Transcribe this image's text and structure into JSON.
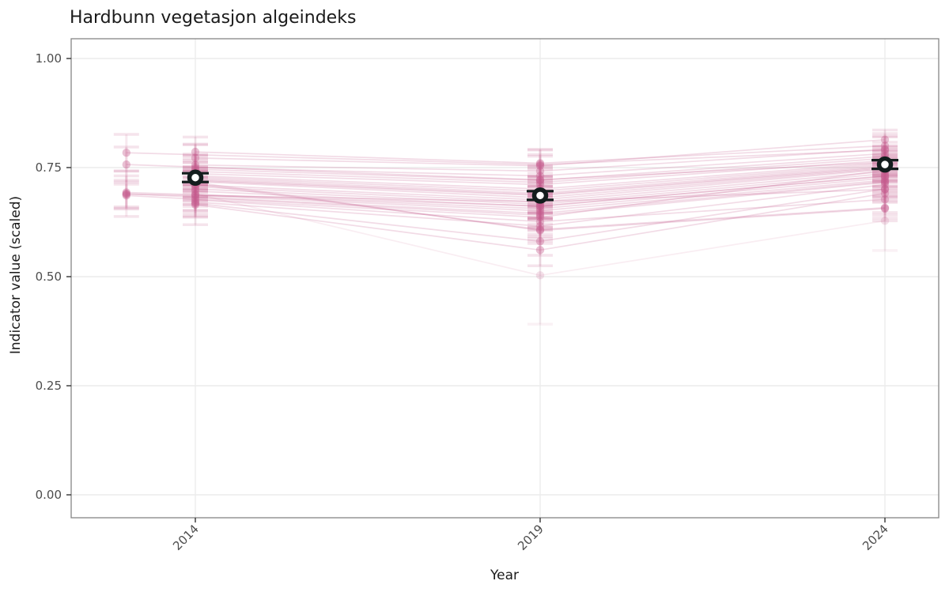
{
  "chart_data": {
    "type": "line",
    "title": "Hardbunn vegetasjon algeindeks",
    "xlabel": "Year",
    "ylabel": "Indicator value (scaled)",
    "x_ticks": [
      2014,
      2019,
      2024
    ],
    "x_tick_labels": [
      "2014",
      "2019",
      "2024"
    ],
    "y_ticks": [
      0,
      0.25,
      0.5,
      0.75,
      1
    ],
    "y_tick_labels": [
      "0.00",
      "0.25",
      "0.50",
      "0.75",
      "1.00"
    ],
    "xlim": [
      2012.2,
      2024.8
    ],
    "ylim": [
      -0.05,
      1.05
    ],
    "grid": true,
    "legend": "none",
    "description": "Per-station indicator values (pink lines with vertical error bars) measured first in 2013 or 2014, then in 2019 and 2024; black open circles with capped error bars show the yearly mean with confidence interval.",
    "means": [
      {
        "year": 2014,
        "value": 0.727,
        "ci": 0.01
      },
      {
        "year": 2019,
        "value": 0.686,
        "ci": 0.01
      },
      {
        "year": 2024,
        "value": 0.757,
        "ci": 0.01
      }
    ],
    "station_format": [
      "first_year",
      "first_value",
      "first_err",
      "value_2019",
      "err_2019",
      "value_2024",
      "err_2024",
      "alpha_scale_optional"
    ],
    "stations": [
      [
        2013,
        0.784,
        0.042,
        0.757,
        0.035,
        0.79,
        0.03
      ],
      [
        2013,
        0.757,
        0.04,
        0.722,
        0.03,
        0.762,
        0.028
      ],
      [
        2013,
        0.693,
        0.038,
        0.662,
        0.03,
        0.73,
        0.032
      ],
      [
        2013,
        0.69,
        0.052,
        0.645,
        0.04,
        0.718,
        0.04
      ],
      [
        2013,
        0.686,
        0.026,
        0.636,
        0.028,
        0.744,
        0.026
      ],
      [
        2013,
        0.689,
        0.032,
        0.672,
        0.026,
        0.7,
        0.03
      ],
      [
        2014,
        0.786,
        0.034,
        0.76,
        0.03,
        0.8,
        0.028
      ],
      [
        2014,
        0.772,
        0.03,
        0.754,
        0.026,
        0.814,
        0.022
      ],
      [
        2014,
        0.756,
        0.048,
        0.742,
        0.034,
        0.792,
        0.03
      ],
      [
        2014,
        0.75,
        0.02,
        0.731,
        0.024,
        0.782,
        0.026
      ],
      [
        2014,
        0.746,
        0.03,
        0.721,
        0.028,
        0.776,
        0.024
      ],
      [
        2014,
        0.741,
        0.04,
        0.716,
        0.03,
        0.771,
        0.028
      ],
      [
        2014,
        0.736,
        0.026,
        0.711,
        0.026,
        0.766,
        0.03
      ],
      [
        2014,
        0.731,
        0.03,
        0.701,
        0.028,
        0.761,
        0.026
      ],
      [
        2014,
        0.728,
        0.05,
        0.696,
        0.034,
        0.758,
        0.028
      ],
      [
        2014,
        0.725,
        0.022,
        0.691,
        0.024,
        0.755,
        0.024
      ],
      [
        2014,
        0.722,
        0.03,
        0.688,
        0.028,
        0.752,
        0.028
      ],
      [
        2014,
        0.72,
        0.046,
        0.686,
        0.036,
        0.75,
        0.03
      ],
      [
        2014,
        0.718,
        0.024,
        0.681,
        0.026,
        0.748,
        0.026
      ],
      [
        2014,
        0.716,
        0.034,
        0.606,
        0.03,
        0.656,
        0.028
      ],
      [
        2014,
        0.712,
        0.03,
        0.608,
        0.026,
        0.658,
        0.024
      ],
      [
        2014,
        0.71,
        0.036,
        0.676,
        0.03,
        0.746,
        0.028
      ],
      [
        2014,
        0.706,
        0.022,
        0.671,
        0.024,
        0.741,
        0.026
      ],
      [
        2014,
        0.701,
        0.04,
        0.666,
        0.032,
        0.736,
        0.028
      ],
      [
        2014,
        0.696,
        0.03,
        0.661,
        0.028,
        0.731,
        0.026
      ],
      [
        2014,
        0.69,
        0.05,
        0.503,
        0.112,
        0.628,
        0.068,
        0.5
      ],
      [
        2014,
        0.688,
        0.022,
        0.656,
        0.026,
        0.726,
        0.024
      ],
      [
        2014,
        0.686,
        0.034,
        0.651,
        0.03,
        0.721,
        0.028
      ],
      [
        2014,
        0.681,
        0.03,
        0.641,
        0.028,
        0.716,
        0.026
      ],
      [
        2014,
        0.676,
        0.04,
        0.626,
        0.034,
        0.677,
        0.03
      ],
      [
        2014,
        0.671,
        0.026,
        0.616,
        0.028,
        0.711,
        0.026
      ],
      [
        2014,
        0.668,
        0.03,
        0.581,
        0.032,
        0.701,
        0.028
      ],
      [
        2014,
        0.665,
        0.046,
        0.561,
        0.036,
        0.691,
        0.05
      ]
    ]
  },
  "colors": {
    "station": "#C65D8D",
    "mean": "#131D1D",
    "mean_fill": "#FFFFFF",
    "grid": "#ECECEC",
    "panel_border": "#858585",
    "tick_mark": "#333333",
    "tick_text": "#4D4D4D",
    "text": "#1A1A1A",
    "background": "#FFFFFF"
  }
}
